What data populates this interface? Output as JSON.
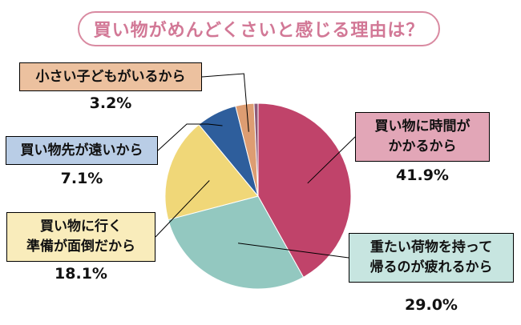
{
  "chart_data": {
    "type": "pie",
    "title": "買い物がめんどくさいと感じる理由は？",
    "slices": [
      {
        "label_lines": [
          "買い物に時間が",
          "かかるから"
        ],
        "value": 41.9,
        "pct_text": "41.9%",
        "color": "#c0436a",
        "box_color": "#e2a6b7"
      },
      {
        "label_lines": [
          "重たい荷物を持って",
          "帰るのが疲れるから"
        ],
        "value": 29.0,
        "pct_text": "29.0%",
        "color": "#93c8c0",
        "box_color": "#c7e5e0"
      },
      {
        "label_lines": [
          "買い物に行く",
          "準備が面倒だから"
        ],
        "value": 18.1,
        "pct_text": "18.1%",
        "color": "#f0d778",
        "box_color": "#f9ecbb"
      },
      {
        "label_lines": [
          "買い物先が遠いから"
        ],
        "value": 7.1,
        "pct_text": "7.1%",
        "color": "#2e5e9c",
        "box_color": "#b9cde6"
      },
      {
        "label_lines": [
          "小さい子どもがいるから"
        ],
        "value": 3.2,
        "pct_text": "3.2%",
        "color": "#dd9d72",
        "box_color": "#ecc19f"
      },
      {
        "label_lines": [],
        "value": 0.7,
        "pct_text": "",
        "color": "#8c5a78",
        "box_color": ""
      }
    ]
  }
}
